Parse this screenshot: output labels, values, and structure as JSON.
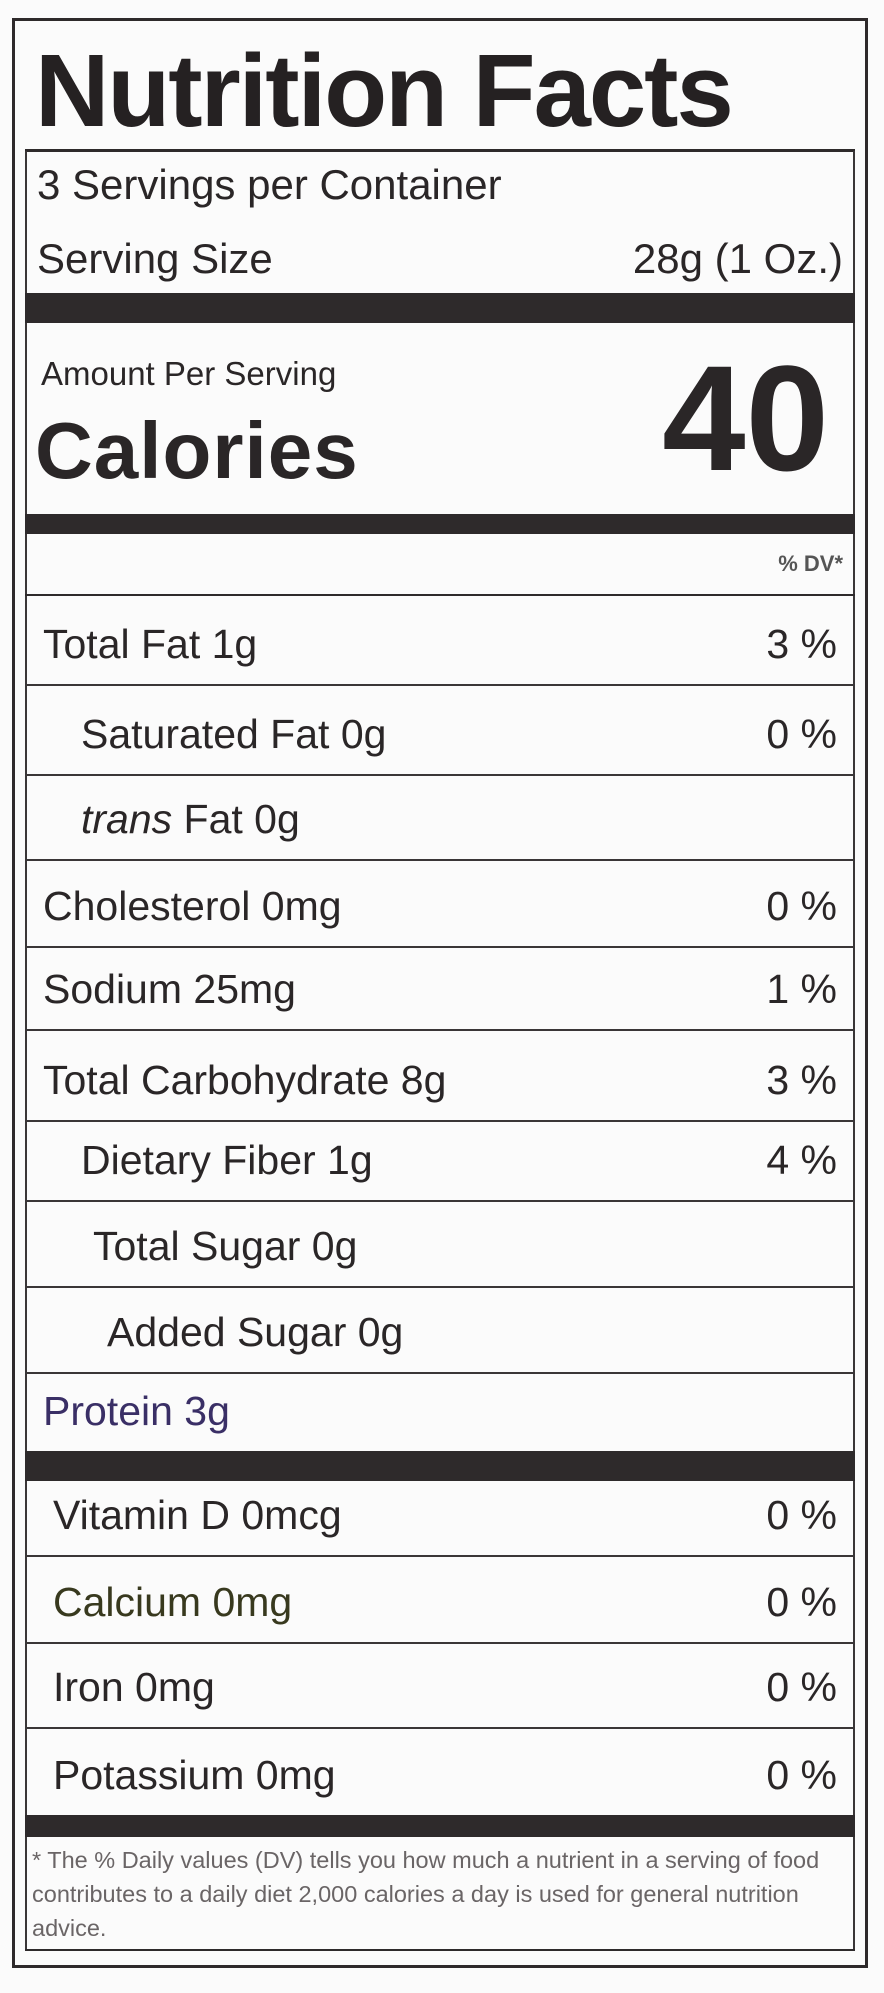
{
  "title": "Nutrition Facts",
  "servings_per_container": "3 Servings per Container",
  "serving_size_label": "Serving Size",
  "serving_size_value": "28g (1 Oz.)",
  "amount_per_serving": "Amount Per Serving",
  "calories_label": "Calories",
  "calories_value": "40",
  "dv_header": "% DV*",
  "nutrients": [
    {
      "label": "Total Fat 1g",
      "dv": "3 %"
    },
    {
      "label": "Saturated Fat 0g",
      "dv": "0 %"
    },
    {
      "label_italic": "trans",
      "label": " Fat 0g",
      "dv": ""
    },
    {
      "label": "Cholesterol 0mg",
      "dv": "0 %"
    },
    {
      "label": "Sodium 25mg",
      "dv": "1 %"
    },
    {
      "label": "Total Carbohydrate 8g",
      "dv": "3 %"
    },
    {
      "label": "Dietary Fiber 1g",
      "dv": "4 %"
    },
    {
      "label": "Total Sugar 0g",
      "dv": ""
    },
    {
      "label": "Added Sugar 0g",
      "dv": ""
    },
    {
      "label": "Protein 3g",
      "dv": ""
    }
  ],
  "vitamins": [
    {
      "label": "Vitamin D 0mcg",
      "dv": "0 %"
    },
    {
      "label": "Calcium 0mg",
      "dv": "0 %"
    },
    {
      "label": "Iron 0mg",
      "dv": "0 %"
    },
    {
      "label": "Potassium 0mg",
      "dv": "0 %"
    }
  ],
  "footnote": "* The % Daily values (DV) tells you how much a nutrient in a serving of food contributes to a daily diet 2,000 calories a day is used for general nutrition advice."
}
